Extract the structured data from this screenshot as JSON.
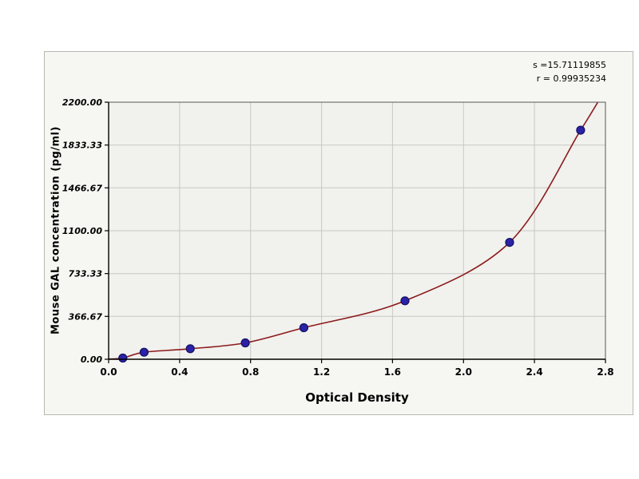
{
  "chart_data": {
    "type": "scatter",
    "title": "",
    "xlabel": "Optical Density",
    "ylabel": "Mouse GAL concentration (pg/ml)",
    "annotations": [
      "s =15.71119855",
      "r = 0.99935234"
    ],
    "x_ticks": [
      "0.0",
      "0.4",
      "0.8",
      "1.2",
      "1.6",
      "2.0",
      "2.4",
      "2.8"
    ],
    "y_ticks": [
      "0.00",
      "366.67",
      "733.33",
      "1100.00",
      "1466.67",
      "1833.33",
      "2200.00"
    ],
    "xlim": [
      0,
      2.8
    ],
    "ylim": [
      0,
      2200
    ],
    "grid": true,
    "legend": "none",
    "series": [
      {
        "name": "standard-points",
        "type": "points",
        "x": [
          0.08,
          0.2,
          0.46,
          0.77,
          1.1,
          1.67,
          2.26,
          2.66
        ],
        "y": [
          10,
          60,
          90,
          140,
          270,
          500,
          1000,
          1960
        ]
      },
      {
        "name": "fitted-curve",
        "type": "curve",
        "x": [
          0.0,
          0.08,
          0.2,
          0.46,
          0.77,
          1.1,
          1.67,
          2.26,
          2.66,
          2.78
        ],
        "y": [
          2,
          10,
          60,
          90,
          140,
          270,
          500,
          1000,
          1960,
          2260
        ]
      }
    ],
    "colors": {
      "curve": "#8B1A1A",
      "marker_fill": "#2B22A8",
      "marker_stroke": "#14105E",
      "grid": "#c8c8c4",
      "plot_bg": "#f1f1ee",
      "figure_bg": "#f6f6f3",
      "axis": "#000000",
      "tick_text": "#000000"
    }
  }
}
